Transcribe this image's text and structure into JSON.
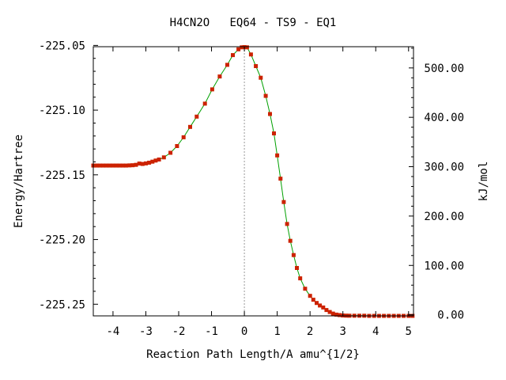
{
  "chart_data": {
    "type": "line",
    "title": "H4CN2O   EQ64 - TS9 - EQ1",
    "xlabel": "Reaction Path Length/A amu^{1/2}",
    "ylabel": "Energy/Hartree",
    "y2label": "kJ/mol",
    "xlim": [
      -4.6,
      5.15
    ],
    "ylim": [
      -225.259,
      -225.051
    ],
    "y2lim": [
      -2.2,
      543.0
    ],
    "x_ticks": [
      "-4",
      "-3",
      "-2",
      "-1",
      "0",
      "1",
      "2",
      "3",
      "4",
      "5"
    ],
    "y_ticks": [
      "-225.05",
      "-225.10",
      "-225.15",
      "-225.20",
      "-225.25"
    ],
    "y2_ticks": [
      "0.00",
      "100.00",
      "200.00",
      "300.00",
      "400.00",
      "500.00"
    ],
    "ts_marker_x": 0.0,
    "grid": false,
    "line_color": "#00a000",
    "marker_color": "#cc2200",
    "series": [
      {
        "points": [
          [
            -4.6,
            -225.1428
          ],
          [
            -4.5,
            -225.1428
          ],
          [
            -4.4,
            -225.1428
          ],
          [
            -4.3,
            -225.1428
          ],
          [
            -4.2,
            -225.1428
          ],
          [
            -4.1,
            -225.1428
          ],
          [
            -4.0,
            -225.1428
          ],
          [
            -3.9,
            -225.1428
          ],
          [
            -3.8,
            -225.1428
          ],
          [
            -3.7,
            -225.1428
          ],
          [
            -3.6,
            -225.1428
          ],
          [
            -3.5,
            -225.1427
          ],
          [
            -3.4,
            -225.1426
          ],
          [
            -3.3,
            -225.1423
          ],
          [
            -3.2,
            -225.1413
          ],
          [
            -3.1,
            -225.1416
          ],
          [
            -3.0,
            -225.1412
          ],
          [
            -2.9,
            -225.1406
          ],
          [
            -2.8,
            -225.1398
          ],
          [
            -2.7,
            -225.139
          ],
          [
            -2.6,
            -225.1382
          ],
          [
            -2.45,
            -225.1365
          ],
          [
            -2.25,
            -225.133
          ],
          [
            -2.05,
            -225.1278
          ],
          [
            -1.85,
            -225.121
          ],
          [
            -1.65,
            -225.113
          ],
          [
            -1.45,
            -225.105
          ],
          [
            -1.2,
            -225.095
          ],
          [
            -0.98,
            -225.084
          ],
          [
            -0.75,
            -225.074
          ],
          [
            -0.52,
            -225.065
          ],
          [
            -0.35,
            -225.0575
          ],
          [
            -0.18,
            -225.053
          ],
          [
            -0.08,
            -225.0515
          ],
          [
            0.0,
            -225.0513
          ],
          [
            0.08,
            -225.0515
          ],
          [
            0.2,
            -225.057
          ],
          [
            0.35,
            -225.066
          ],
          [
            0.5,
            -225.075
          ],
          [
            0.65,
            -225.089
          ],
          [
            0.78,
            -225.103
          ],
          [
            0.9,
            -225.118
          ],
          [
            1.0,
            -225.135
          ],
          [
            1.1,
            -225.153
          ],
          [
            1.2,
            -225.171
          ],
          [
            1.3,
            -225.188
          ],
          [
            1.4,
            -225.201
          ],
          [
            1.5,
            -225.212
          ],
          [
            1.6,
            -225.222
          ],
          [
            1.7,
            -225.23
          ],
          [
            1.85,
            -225.238
          ],
          [
            2.0,
            -225.2435
          ],
          [
            2.1,
            -225.2465
          ],
          [
            2.2,
            -225.249
          ],
          [
            2.3,
            -225.251
          ],
          [
            2.4,
            -225.2525
          ],
          [
            2.5,
            -225.2545
          ],
          [
            2.6,
            -225.256
          ],
          [
            2.7,
            -225.2572
          ],
          [
            2.8,
            -225.258
          ],
          [
            2.9,
            -225.2584
          ],
          [
            3.0,
            -225.2587
          ],
          [
            3.1,
            -225.2588
          ],
          [
            3.2,
            -225.2589
          ],
          [
            3.35,
            -225.2589
          ],
          [
            3.5,
            -225.2589
          ],
          [
            3.65,
            -225.2589
          ],
          [
            3.8,
            -225.259
          ],
          [
            3.95,
            -225.259
          ],
          [
            4.1,
            -225.259
          ],
          [
            4.25,
            -225.259
          ],
          [
            4.4,
            -225.259
          ],
          [
            4.55,
            -225.259
          ],
          [
            4.7,
            -225.259
          ],
          [
            4.85,
            -225.259
          ],
          [
            5.0,
            -225.259
          ],
          [
            5.12,
            -225.259
          ]
        ]
      }
    ]
  }
}
